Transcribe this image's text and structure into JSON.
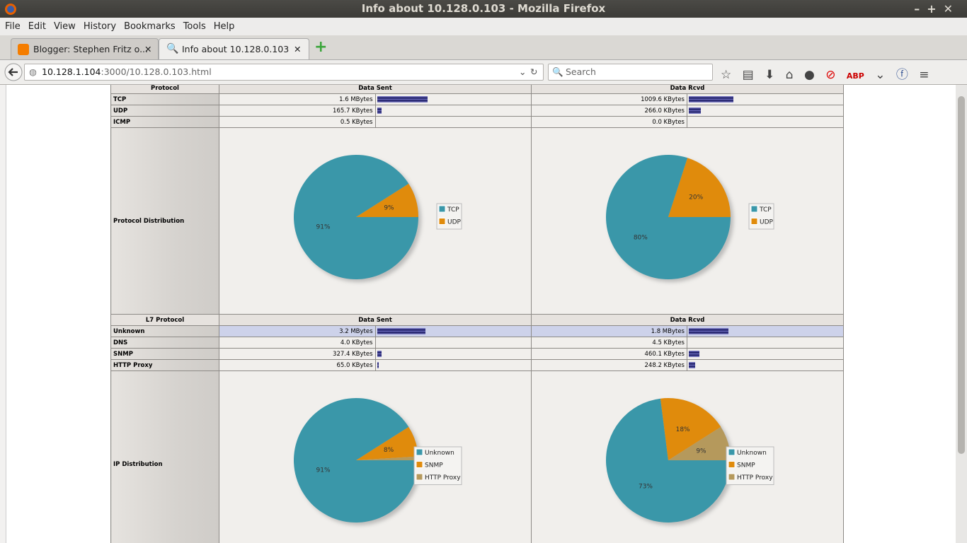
{
  "window": {
    "title": "Info about 10.128.0.103 - Mozilla Firefox"
  },
  "menu": [
    "File",
    "Edit",
    "View",
    "History",
    "Bookmarks",
    "Tools",
    "Help"
  ],
  "tabs": [
    {
      "title": "Blogger: Stephen Fritz o..."
    },
    {
      "title": "Info about 10.128.0.103"
    }
  ],
  "address_bar": {
    "host": "10.128.1.104",
    "path": ":3000/10.128.0.103.html"
  },
  "search": {
    "placeholder": "Search"
  },
  "tables": [
    {
      "headers": [
        "Protocol",
        "Data Sent",
        "Data Rcvd"
      ],
      "rows": [
        {
          "name": "TCP",
          "sent": "1.6 MBytes",
          "sent_bar_pct": 33,
          "rcvd": "1009.6 KBytes",
          "rcvd_bar_pct": 29
        },
        {
          "name": "UDP",
          "sent": "165.7 KBytes",
          "sent_bar_pct": 3,
          "rcvd": "266.0 KBytes",
          "rcvd_bar_pct": 8
        },
        {
          "name": "ICMP",
          "sent": "0.5 KBytes",
          "sent_bar_pct": 0,
          "rcvd": "0.0 KBytes",
          "rcvd_bar_pct": 0
        }
      ],
      "distribution": {
        "label": "Protocol Distribution",
        "sent": {
          "type": "pie",
          "categories": [
            "TCP",
            "UDP"
          ],
          "values": [
            91,
            9
          ],
          "value_labels": [
            "91%",
            "9%"
          ],
          "colors": [
            "#3a97a9",
            "#e08b0c"
          ]
        },
        "rcvd": {
          "type": "pie",
          "categories": [
            "TCP",
            "UDP"
          ],
          "values": [
            80,
            20
          ],
          "value_labels": [
            "80%",
            "20%"
          ],
          "colors": [
            "#3a97a9",
            "#e08b0c"
          ]
        }
      }
    },
    {
      "headers": [
        "L7 Protocol",
        "Data Sent",
        "Data Rcvd"
      ],
      "rows": [
        {
          "name": "Unknown",
          "sent": "3.2 MBytes",
          "sent_bar_pct": 32,
          "rcvd": "1.8 MBytes",
          "rcvd_bar_pct": 26
        },
        {
          "name": "DNS",
          "sent": "4.0 KBytes",
          "sent_bar_pct": 0,
          "rcvd": "4.5 KBytes",
          "rcvd_bar_pct": 0
        },
        {
          "name": "SNMP",
          "sent": "327.4 KBytes",
          "sent_bar_pct": 3,
          "rcvd": "460.1 KBytes",
          "rcvd_bar_pct": 7
        },
        {
          "name": "HTTP Proxy",
          "sent": "65.0 KBytes",
          "sent_bar_pct": 1,
          "rcvd": "248.2 KBytes",
          "rcvd_bar_pct": 4
        }
      ],
      "distribution": {
        "label": "IP Distribution",
        "sent": {
          "type": "pie",
          "categories": [
            "Unknown",
            "SNMP",
            "HTTP Proxy"
          ],
          "values": [
            91,
            8,
            1
          ],
          "value_labels": [
            "91%",
            "8%",
            null
          ],
          "colors": [
            "#3a97a9",
            "#e08b0c",
            "#b5995c"
          ]
        },
        "rcvd": {
          "type": "pie",
          "categories": [
            "Unknown",
            "SNMP",
            "HTTP Proxy"
          ],
          "values": [
            73,
            18,
            9
          ],
          "value_labels": [
            "73%",
            "18%",
            "9%"
          ],
          "colors": [
            "#3a97a9",
            "#e08b0c",
            "#b5995c"
          ]
        }
      }
    }
  ]
}
